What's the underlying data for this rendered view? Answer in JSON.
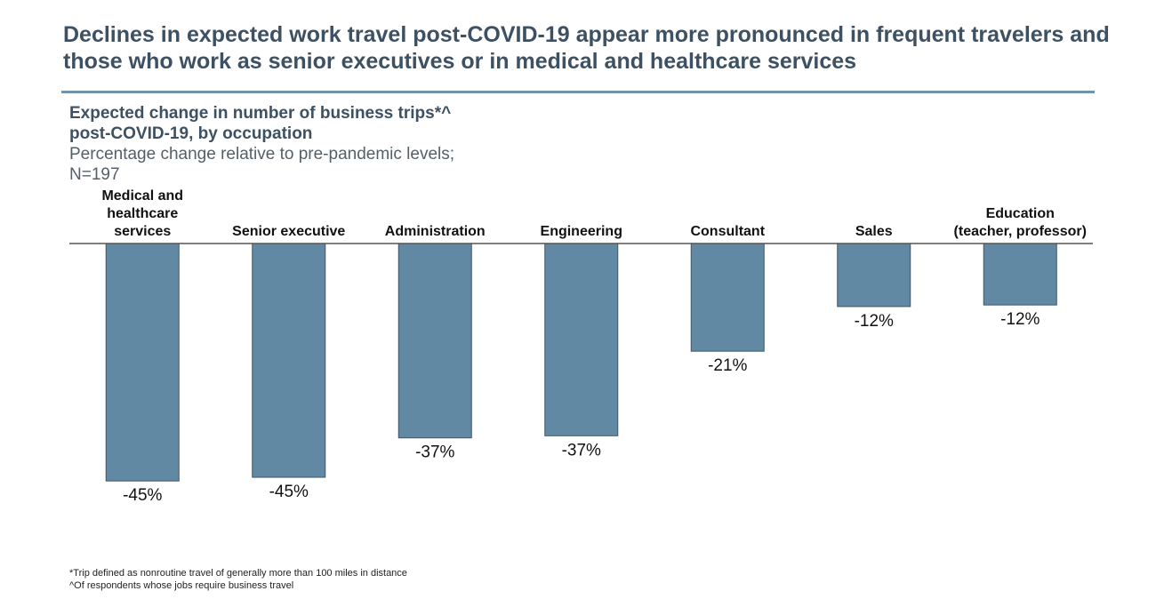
{
  "slide": {
    "title": "Declines in expected work travel post-COVID-19 appear more pronounced in frequent travelers and those who work as senior executives or in medical and healthcare services",
    "subtitle_bold_line1": "Expected change in number of business trips*^",
    "subtitle_bold_line2": "post-COVID-19, by occupation",
    "subtitle_line3": "Percentage change relative to pre-pandemic levels;",
    "subtitle_line4": "N=197",
    "footnote_1": "*Trip defined as nonroutine travel of generally more than 100 miles in distance",
    "footnote_2": "^Of respondents whose jobs require business travel"
  },
  "colors": {
    "bar": "#6189a4",
    "bar_border": "#3f5666",
    "title": "#3d5163",
    "rule": "#6f93aa"
  },
  "chart_data": {
    "type": "bar",
    "orientation": "vertical-down",
    "title": "Expected change in number of business trips*^ post-COVID-19, by occupation",
    "ylabel": "Percentage change relative to pre-pandemic levels",
    "categories": [
      [
        "Medical and",
        "healthcare",
        "services"
      ],
      [
        "Senior executive"
      ],
      [
        "Administration"
      ],
      [
        "Engineering"
      ],
      [
        "Consultant"
      ],
      [
        "Sales"
      ],
      [
        "Education",
        "(teacher, professor)"
      ]
    ],
    "values": [
      -45,
      -45,
      -37,
      -37,
      -21,
      -12,
      -12
    ],
    "bar_values": [
      -45.2,
      -44.5,
      -37.0,
      -36.6,
      -20.5,
      -12.0,
      -11.7
    ],
    "labels": [
      "-45%",
      "-45%",
      "-37%",
      "-37%",
      "-21%",
      "-12%",
      "-12%"
    ],
    "ylim": [
      -50,
      0
    ],
    "grid": false
  }
}
